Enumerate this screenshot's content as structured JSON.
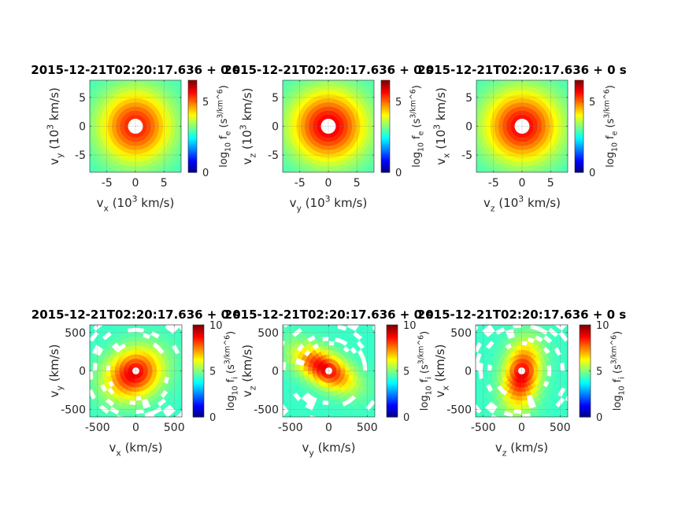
{
  "figure": {
    "title_text": "2015-12-21T02:20:17.636 + 0 s",
    "colormap": "jet"
  },
  "chart_data": [
    {
      "type": "heatmap",
      "title": "2015-12-21T02:20:17.636 + 0 s",
      "xlabel": "v_x (10^3 km/s)",
      "ylabel": "v_y (10^3 km/s)",
      "xlim": [
        -8,
        8
      ],
      "ylim": [
        -8,
        8
      ],
      "xticks": [
        "-5",
        "0",
        "5"
      ],
      "yticks": [
        "-5",
        "0",
        "5"
      ],
      "xtick_values": [
        -5,
        0,
        5
      ],
      "ytick_values": [
        -5,
        0,
        5
      ],
      "colorbar": {
        "label": "log10 f_e (s^3/km^6)",
        "range": [
          0,
          6.5
        ],
        "ticks": [
          "0",
          "5"
        ],
        "tick_values": [
          0,
          5
        ]
      },
      "distribution": {
        "peak": 5.6,
        "edge": 2.8,
        "hole_radius": 1.3,
        "sigma_par": 9,
        "sigma_perp": 9,
        "angle_deg": 0,
        "center": [
          0,
          0
        ],
        "gaps": false
      }
    },
    {
      "type": "heatmap",
      "title": "2015-12-21T02:20:17.636 + 0 s",
      "xlabel": "v_y (10^3 km/s)",
      "ylabel": "v_z (10^3 km/s)",
      "xlim": [
        -8,
        8
      ],
      "ylim": [
        -8,
        8
      ],
      "xticks": [
        "-5",
        "0",
        "5"
      ],
      "yticks": [
        "-5",
        "0",
        "5"
      ],
      "xtick_values": [
        -5,
        0,
        5
      ],
      "ytick_values": [
        -5,
        0,
        5
      ],
      "colorbar": {
        "label": "log10 f_e (s^3/km^6)",
        "range": [
          0,
          6.5
        ],
        "ticks": [
          "0",
          "5"
        ],
        "tick_values": [
          0,
          5
        ]
      },
      "distribution": {
        "peak": 5.9,
        "edge": 2.8,
        "hole_radius": 1.3,
        "sigma_par": 9.5,
        "sigma_perp": 9,
        "angle_deg": 0,
        "center": [
          0,
          0
        ],
        "gaps": false
      }
    },
    {
      "type": "heatmap",
      "title": "2015-12-21T02:20:17.636 + 0 s",
      "xlabel": "v_z (10^3 km/s)",
      "ylabel": "v_x (10^3 km/s)",
      "xlim": [
        -8,
        8
      ],
      "ylim": [
        -8,
        8
      ],
      "xticks": [
        "-5",
        "0",
        "5"
      ],
      "yticks": [
        "-5",
        "0",
        "5"
      ],
      "xtick_values": [
        -5,
        0,
        5
      ],
      "ytick_values": [
        -5,
        0,
        5
      ],
      "colorbar": {
        "label": "log10 f_e (s^3/km^6)",
        "range": [
          0,
          6.5
        ],
        "ticks": [
          "0",
          "5"
        ],
        "tick_values": [
          0,
          5
        ]
      },
      "distribution": {
        "peak": 5.8,
        "edge": 2.8,
        "hole_radius": 1.3,
        "sigma_par": 9.5,
        "sigma_perp": 9,
        "angle_deg": 0,
        "center": [
          0,
          0
        ],
        "gaps": false
      }
    },
    {
      "type": "heatmap",
      "title": "2015-12-21T02:20:17.636 + 0 s",
      "xlabel": "v_x (km/s)",
      "ylabel": "v_y (km/s)",
      "xlim": [
        -600,
        600
      ],
      "ylim": [
        -600,
        600
      ],
      "xticks": [
        "-500",
        "0",
        "500"
      ],
      "yticks": [
        "-500",
        "0",
        "500"
      ],
      "xtick_values": [
        -500,
        0,
        500
      ],
      "ytick_values": [
        -500,
        0,
        500
      ],
      "colorbar": {
        "label": "log10 f_i (s^3/km^6)",
        "range": [
          0,
          10
        ],
        "ticks": [
          "0",
          "5",
          "10"
        ],
        "tick_values": [
          0,
          5,
          10
        ]
      },
      "distribution": {
        "peak": 9.0,
        "edge": 4.3,
        "hole_radius": 45,
        "sigma_par": 560,
        "sigma_perp": 440,
        "angle_deg": 30,
        "center": [
          -30,
          -40
        ],
        "gaps": true
      }
    },
    {
      "type": "heatmap",
      "title": "2015-12-21T02:20:17.636 + 0 s",
      "xlabel": "v_y (km/s)",
      "ylabel": "v_z (km/s)",
      "xlim": [
        -600,
        600
      ],
      "ylim": [
        -600,
        600
      ],
      "xticks": [
        "-500",
        "0",
        "500"
      ],
      "yticks": [
        "-500",
        "0",
        "500"
      ],
      "xtick_values": [
        -500,
        0,
        500
      ],
      "ytick_values": [
        -500,
        0,
        500
      ],
      "colorbar": {
        "label": "log10 f_i (s^3/km^6)",
        "range": [
          0,
          10
        ],
        "ticks": [
          "0",
          "5",
          "10"
        ],
        "tick_values": [
          0,
          5,
          10
        ]
      },
      "distribution": {
        "peak": 9.0,
        "edge": 4.3,
        "hole_radius": 45,
        "sigma_par": 620,
        "sigma_perp": 300,
        "angle_deg": -30,
        "center": [
          -60,
          30
        ],
        "gaps": true
      }
    },
    {
      "type": "heatmap",
      "title": "2015-12-21T02:20:17.636 + 0 s",
      "xlabel": "v_z (km/s)",
      "ylabel": "v_x (km/s)",
      "xlim": [
        -600,
        600
      ],
      "ylim": [
        -600,
        600
      ],
      "xticks": [
        "-500",
        "0",
        "500"
      ],
      "yticks": [
        "-500",
        "0",
        "500"
      ],
      "xtick_values": [
        -500,
        0,
        500
      ],
      "ytick_values": [
        -500,
        0,
        500
      ],
      "colorbar": {
        "label": "log10 f_i (s^3/km^6)",
        "range": [
          0,
          10
        ],
        "ticks": [
          "0",
          "5",
          "10"
        ],
        "tick_values": [
          0,
          5,
          10
        ]
      },
      "distribution": {
        "peak": 9.0,
        "edge": 4.3,
        "hole_radius": 45,
        "sigma_par": 620,
        "sigma_perp": 330,
        "angle_deg": 80,
        "center": [
          0,
          -60
        ],
        "gaps": true
      }
    }
  ]
}
